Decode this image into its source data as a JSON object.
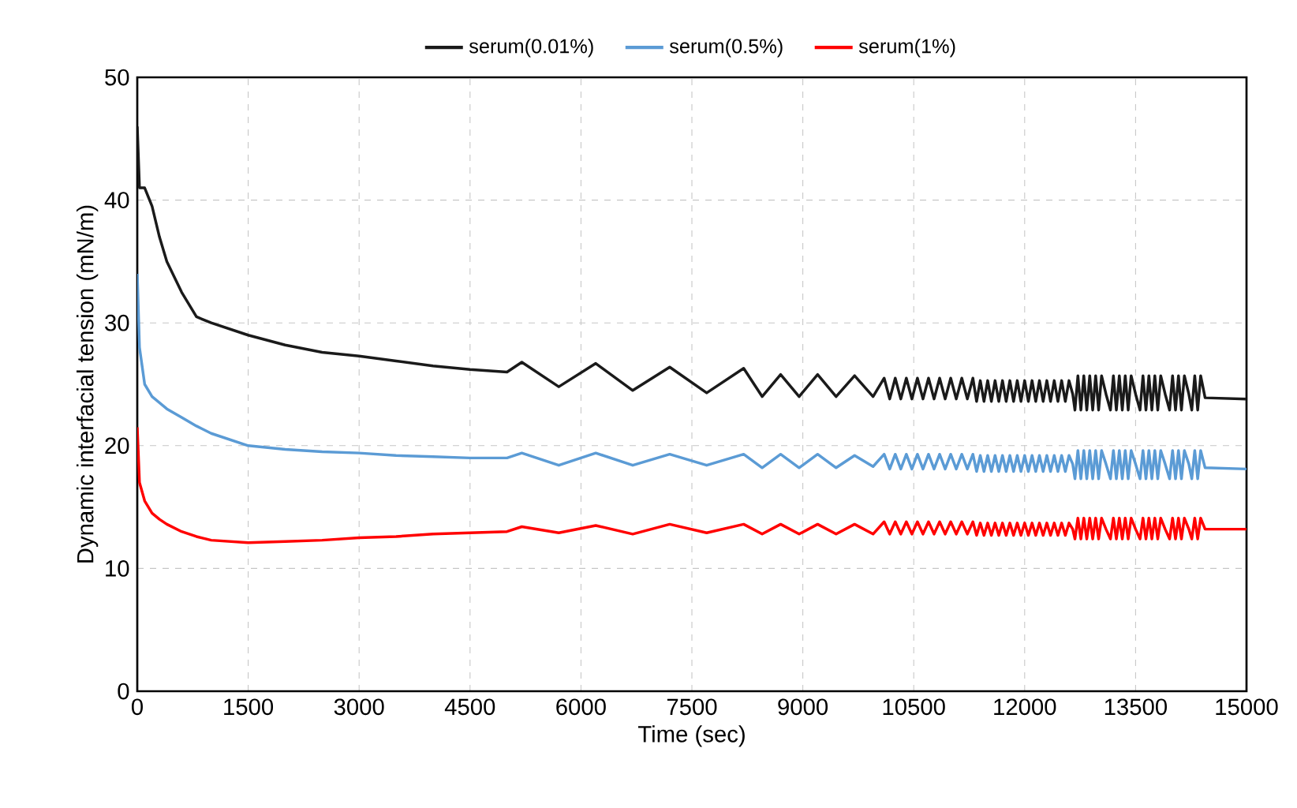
{
  "chart_data": {
    "type": "line",
    "xlabel": "Time (sec)",
    "ylabel": "Dynamic interfacial tension (mN/m)",
    "xlim": [
      0,
      15000
    ],
    "ylim": [
      0,
      50
    ],
    "xticks": [
      0,
      1500,
      3000,
      4500,
      6000,
      7500,
      9000,
      10500,
      12000,
      13500,
      15000
    ],
    "yticks": [
      0,
      10,
      20,
      30,
      40,
      50
    ],
    "grid": true,
    "legend": "top",
    "line_style": "solid",
    "x": [
      0,
      30,
      100,
      200,
      300,
      400,
      600,
      800,
      1000,
      1500,
      2000,
      2500,
      3000,
      3500,
      4000,
      4500,
      5000,
      5200,
      5700,
      6200,
      6700,
      7200,
      7700,
      8200,
      8450,
      8700,
      8950,
      9200,
      9450,
      9700,
      9950,
      10100,
      10175,
      10250,
      10325,
      10400,
      10475,
      10550,
      10625,
      10700,
      10775,
      10850,
      10925,
      11000,
      11075,
      11150,
      11225,
      11300,
      11350,
      11400,
      11450,
      11500,
      11550,
      11600,
      11650,
      11700,
      11750,
      11800,
      11850,
      11900,
      11950,
      12000,
      12050,
      12100,
      12150,
      12200,
      12250,
      12300,
      12350,
      12400,
      12450,
      12500,
      12550,
      12600,
      12650,
      12680,
      12720,
      12760,
      12800,
      12840,
      12880,
      12920,
      12960,
      13000,
      13040,
      13100,
      13160,
      13200,
      13240,
      13280,
      13320,
      13360,
      13400,
      13440,
      13500,
      13560,
      13600,
      13640,
      13680,
      13720,
      13760,
      13800,
      13840,
      13900,
      13960,
      14000,
      14040,
      14080,
      14120,
      14160,
      14220,
      14260,
      14300,
      14340,
      14380,
      14440,
      15000
    ],
    "series": [
      {
        "name": "serum(0.01%)",
        "color": "#1a1a1a",
        "values": [
          46,
          41,
          41,
          39.5,
          37,
          35,
          32.5,
          30.5,
          30,
          29,
          28.2,
          27.6,
          27.3,
          26.9,
          26.5,
          26.2,
          26,
          26.8,
          24.8,
          26.7,
          24.5,
          26.4,
          24.3,
          26.3,
          24,
          25.8,
          24,
          25.8,
          24,
          25.7,
          24,
          25.5,
          23.8,
          25.5,
          23.8,
          25.5,
          23.8,
          25.5,
          23.8,
          25.5,
          23.8,
          25.5,
          23.8,
          25.5,
          23.8,
          25.5,
          23.8,
          25.5,
          23.6,
          25.3,
          23.6,
          25.3,
          23.6,
          25.3,
          23.6,
          25.3,
          23.6,
          25.3,
          23.6,
          25.3,
          23.6,
          25.3,
          23.6,
          25.3,
          23.6,
          25.3,
          23.6,
          25.3,
          23.6,
          25.3,
          23.6,
          25.3,
          23.6,
          25.3,
          24.2,
          22.9,
          25.7,
          22.9,
          25.7,
          22.9,
          25.7,
          22.9,
          25.7,
          22.9,
          25.7,
          24.2,
          22.9,
          25.7,
          22.9,
          25.7,
          22.9,
          25.7,
          22.9,
          25.7,
          24.2,
          22.9,
          25.7,
          22.9,
          25.7,
          22.9,
          25.7,
          22.9,
          25.7,
          24.2,
          22.9,
          25.7,
          22.9,
          25.7,
          22.9,
          25.7,
          24.2,
          22.9,
          25.7,
          22.9,
          25.7,
          23.9,
          23.8
        ]
      },
      {
        "name": "serum(0.5%)",
        "color": "#5b9bd5",
        "values": [
          34,
          28,
          25,
          24,
          23.5,
          23,
          22.3,
          21.6,
          21,
          20,
          19.7,
          19.5,
          19.4,
          19.2,
          19.1,
          19,
          19,
          19.4,
          18.4,
          19.4,
          18.4,
          19.3,
          18.4,
          19.3,
          18.2,
          19.3,
          18.2,
          19.3,
          18.2,
          19.2,
          18.3,
          19.3,
          18.1,
          19.3,
          18.1,
          19.3,
          18.1,
          19.3,
          18.1,
          19.3,
          18.1,
          19.3,
          18.1,
          19.3,
          18.1,
          19.3,
          18.1,
          19.3,
          17.9,
          19.2,
          17.9,
          19.2,
          17.9,
          19.2,
          17.9,
          19.2,
          17.9,
          19.2,
          17.9,
          19.2,
          17.9,
          19.2,
          17.9,
          19.2,
          17.9,
          19.2,
          17.9,
          19.2,
          17.9,
          19.2,
          17.9,
          19.2,
          17.9,
          19.2,
          18.5,
          17.3,
          19.6,
          17.3,
          19.6,
          17.3,
          19.6,
          17.3,
          19.6,
          17.3,
          19.6,
          18.5,
          17.3,
          19.6,
          17.3,
          19.6,
          17.3,
          19.6,
          17.3,
          19.6,
          18.5,
          17.3,
          19.6,
          17.3,
          19.6,
          17.3,
          19.6,
          17.3,
          19.6,
          18.5,
          17.3,
          19.6,
          17.3,
          19.6,
          17.3,
          19.6,
          18.5,
          17.3,
          19.6,
          17.3,
          19.6,
          18.2,
          18.1
        ]
      },
      {
        "name": "serum(1%)",
        "color": "#ff0000",
        "values": [
          21.5,
          17,
          15.5,
          14.5,
          14,
          13.6,
          13,
          12.6,
          12.3,
          12.1,
          12.2,
          12.3,
          12.5,
          12.6,
          12.8,
          12.9,
          13,
          13.4,
          12.9,
          13.5,
          12.8,
          13.6,
          12.9,
          13.6,
          12.8,
          13.6,
          12.8,
          13.6,
          12.8,
          13.6,
          12.8,
          13.8,
          12.8,
          13.8,
          12.8,
          13.8,
          12.8,
          13.8,
          12.8,
          13.8,
          12.8,
          13.8,
          12.8,
          13.8,
          12.8,
          13.8,
          12.8,
          13.8,
          12.7,
          13.7,
          12.7,
          13.7,
          12.7,
          13.7,
          12.7,
          13.7,
          12.7,
          13.7,
          12.7,
          13.7,
          12.7,
          13.7,
          12.7,
          13.7,
          12.7,
          13.7,
          12.7,
          13.7,
          12.7,
          13.7,
          12.7,
          13.7,
          12.7,
          13.7,
          13.2,
          12.4,
          14.1,
          12.4,
          14.1,
          12.4,
          14.1,
          12.4,
          14.1,
          12.4,
          14.1,
          13.2,
          12.4,
          14.1,
          12.4,
          14.1,
          12.4,
          14.1,
          12.4,
          14.1,
          13.2,
          12.4,
          14.1,
          12.4,
          14.1,
          12.4,
          14.1,
          12.4,
          14.1,
          13.2,
          12.4,
          14.1,
          12.4,
          14.1,
          12.4,
          14.1,
          13.2,
          12.4,
          14.1,
          12.4,
          14.1,
          13.2,
          13.2
        ]
      }
    ]
  }
}
